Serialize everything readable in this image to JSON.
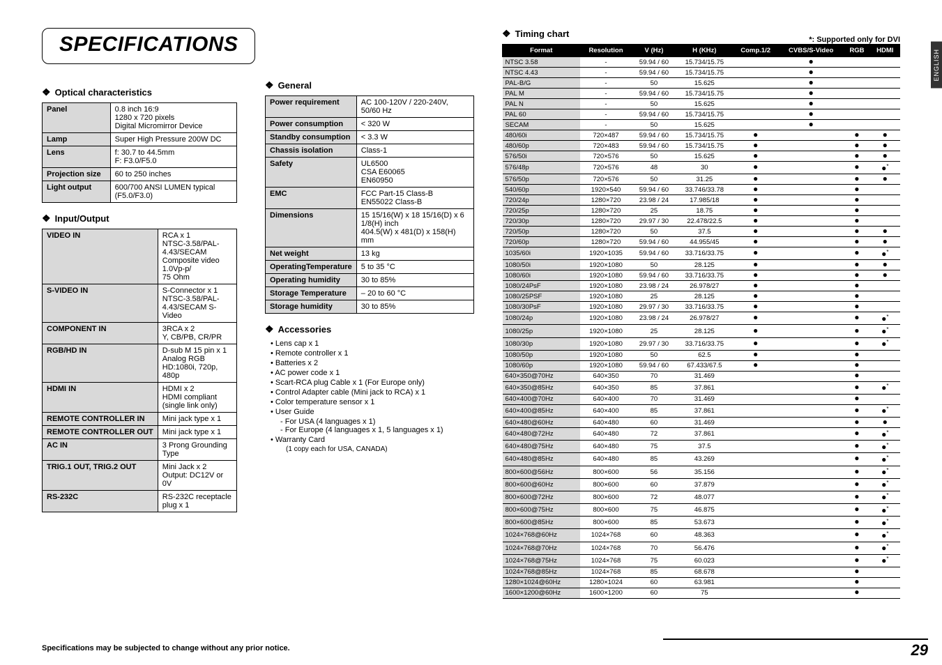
{
  "page": {
    "title": "SPECIFICATIONS",
    "footer_note": "Specifications may be subjected to change without any prior notice.",
    "page_number": "29",
    "lang_tab": "ENGLISH"
  },
  "optical": {
    "heading": "Optical characteristics",
    "rows": [
      [
        "Panel",
        "0.8 inch 16:9\n1280 x 720 pixels\nDigital Micromirror Device"
      ],
      [
        "Lamp",
        "Super High Pressure 200W DC"
      ],
      [
        "Lens",
        "f: 30.7 to 44.5mm\nF: F3.0/F5.0"
      ],
      [
        "Projection size",
        "60 to 250 inches"
      ],
      [
        "Light output",
        "600/700  ANSI LUMEN typical (F5.0/F3.0)"
      ]
    ]
  },
  "io": {
    "heading": "Input/Output",
    "rows": [
      [
        "VIDEO IN",
        "RCA x 1\nNTSC-3.58/PAL-4.43/SECAM Composite video 1.0Vp-p/\n75 Ohm"
      ],
      [
        "S-VIDEO IN",
        "S-Connector x 1\nNTSC-3.58/PAL-4.43/SECAM S-Video"
      ],
      [
        "COMPONENT IN",
        "3RCA x 2\nY, CB/PB, CR/PR"
      ],
      [
        "RGB/HD IN",
        "D-sub M 15 pin x 1\nAnalog RGB\nHD:1080i, 720p, 480p"
      ],
      [
        "HDMI IN",
        "HDMI x 2\nHDMI compliant\n(single link only)"
      ],
      [
        "REMOTE CONTROLLER IN",
        "Mini jack type x 1"
      ],
      [
        "REMOTE CONTROLLER OUT",
        "Mini jack type x 1"
      ],
      [
        "AC IN",
        "3 Prong Grounding Type"
      ],
      [
        "TRIG.1 OUT, TRIG.2 OUT",
        "Mini Jack x 2\nOutput: DC12V or 0V"
      ],
      [
        "RS-232C",
        "RS-232C receptacle plug x 1"
      ]
    ]
  },
  "general": {
    "heading": "General",
    "rows": [
      [
        "Power requirement",
        "AC 100-120V / 220-240V, 50/60 Hz"
      ],
      [
        "Power consumption",
        "< 320 W"
      ],
      [
        "Standby consumption",
        "< 3.3 W"
      ],
      [
        "Chassis isolation",
        "Class-1"
      ],
      [
        "Safety",
        "UL6500\nCSA E60065\nEN60950"
      ],
      [
        "EMC",
        "FCC Part-15 Class-B\nEN55022 Class-B"
      ],
      [
        "Dimensions",
        "15 15/16(W) x 18 15/16(D) x 6 1/8(H) inch\n404.5(W) x 481(D) x 158(H) mm"
      ],
      [
        "Net weight",
        "13 kg"
      ],
      [
        "OperatingTemperature",
        "5 to 35 °C"
      ],
      [
        "Operating humidity",
        "30 to 85%"
      ],
      [
        "Storage Temperature",
        "– 20 to 60 °C"
      ],
      [
        "Storage humidity",
        "30 to 85%"
      ]
    ]
  },
  "accessories": {
    "heading": "Accessories",
    "items": [
      "Lens cap x 1",
      "Remote controller x 1",
      "Batteries x 2",
      "AC power code x 1",
      "Scart-RCA plug Cable x 1 (For Europe only)",
      "Control Adapter cable (Mini jack to RCA) x 1",
      "Color temperature sensor x 1",
      "User Guide",
      "Warranty Card"
    ],
    "userguide_subs": [
      "For USA (4 languages x 1)",
      "For Europe (4 languages x 1, 5 languages x 1)"
    ],
    "warranty_sub": "(1 copy each for USA, CANADA)"
  },
  "timing": {
    "heading": "Timing chart",
    "support_note": "*: Supported only for DVI",
    "headers": [
      "Format",
      "Resolution",
      "V (Hz)",
      "H (KHz)",
      "Comp.1/2",
      "CVBS/S-Video",
      "RGB",
      "HDMI"
    ],
    "rows": [
      [
        "NTSC 3.58",
        "-",
        "59.94 / 60",
        "15.734/15.75",
        "",
        "●",
        "",
        ""
      ],
      [
        "NTSC 4.43",
        "-",
        "59.94 / 60",
        "15.734/15.75",
        "",
        "●",
        "",
        ""
      ],
      [
        "PAL-B/G",
        "-",
        "50",
        "15.625",
        "",
        "●",
        "",
        ""
      ],
      [
        "PAL M",
        "-",
        "59.94 / 60",
        "15.734/15.75",
        "",
        "●",
        "",
        ""
      ],
      [
        "PAL N",
        "-",
        "50",
        "15.625",
        "",
        "●",
        "",
        ""
      ],
      [
        "PAL 60",
        "-",
        "59.94 / 60",
        "15.734/15.75",
        "",
        "●",
        "",
        ""
      ],
      [
        "SECAM",
        "-",
        "50",
        "15.625",
        "",
        "●",
        "",
        ""
      ],
      [
        "480/60i",
        "720×487",
        "59.94 / 60",
        "15.734/15.75",
        "●",
        "",
        "●",
        "●"
      ],
      [
        "480/60p",
        "720×483",
        "59.94 / 60",
        "15.734/15.75",
        "●",
        "",
        "●",
        "●"
      ],
      [
        "576/50i",
        "720×576",
        "50",
        "15.625",
        "●",
        "",
        "●",
        "●"
      ],
      [
        "576/48p",
        "720×576",
        "48",
        "30",
        "●",
        "",
        "●",
        "●*"
      ],
      [
        "576/50p",
        "720×576",
        "50",
        "31.25",
        "●",
        "",
        "●",
        "●"
      ],
      [
        "540/60p",
        "1920×540",
        "59.94 / 60",
        "33.746/33.78",
        "●",
        "",
        "●",
        ""
      ],
      [
        "720/24p",
        "1280×720",
        "23.98 / 24",
        "17.985/18",
        "●",
        "",
        "●",
        ""
      ],
      [
        "720/25p",
        "1280×720",
        "25",
        "18.75",
        "●",
        "",
        "●",
        ""
      ],
      [
        "720/30p",
        "1280×720",
        "29.97 / 30",
        "22.478/22.5",
        "●",
        "",
        "●",
        ""
      ],
      [
        "720/50p",
        "1280×720",
        "50",
        "37.5",
        "●",
        "",
        "●",
        "●"
      ],
      [
        "720/60p",
        "1280×720",
        "59.94 / 60",
        "44.955/45",
        "●",
        "",
        "●",
        "●"
      ],
      [
        "1035/60i",
        "1920×1035",
        "59.94 / 60",
        "33.716/33.75",
        "●",
        "",
        "●",
        "●*"
      ],
      [
        "1080/50i",
        "1920×1080",
        "50",
        "28.125",
        "●",
        "",
        "●",
        "●"
      ],
      [
        "1080/60i",
        "1920×1080",
        "59.94 / 60",
        "33.716/33.75",
        "●",
        "",
        "●",
        "●"
      ],
      [
        "1080/24PsF",
        "1920×1080",
        "23.98 / 24",
        "26.978/27",
        "●",
        "",
        "●",
        ""
      ],
      [
        "1080/25PSF",
        "1920×1080",
        "25",
        "28.125",
        "●",
        "",
        "●",
        ""
      ],
      [
        "1080/30PsF",
        "1920×1080",
        "29.97 / 30",
        "33.716/33.75",
        "●",
        "",
        "●",
        ""
      ],
      [
        "1080/24p",
        "1920×1080",
        "23.98 / 24",
        "26.978/27",
        "●",
        "",
        "●",
        "●*"
      ],
      [
        "1080/25p",
        "1920×1080",
        "25",
        "28.125",
        "●",
        "",
        "●",
        "●*"
      ],
      [
        "1080/30p",
        "1920×1080",
        "29.97 / 30",
        "33.716/33.75",
        "●",
        "",
        "●",
        "●*"
      ],
      [
        "1080/50p",
        "1920×1080",
        "50",
        "62.5",
        "●",
        "",
        "●",
        ""
      ],
      [
        "1080/60p",
        "1920×1080",
        "59.94 / 60",
        "67.433/67.5",
        "●",
        "",
        "●",
        ""
      ],
      [
        "640×350@70Hz",
        "640×350",
        "70",
        "31.469",
        "",
        "",
        "●",
        ""
      ],
      [
        "640×350@85Hz",
        "640×350",
        "85",
        "37.861",
        "",
        "",
        "●",
        "●*"
      ],
      [
        "640×400@70Hz",
        "640×400",
        "70",
        "31.469",
        "",
        "",
        "●",
        ""
      ],
      [
        "640×400@85Hz",
        "640×400",
        "85",
        "37.861",
        "",
        "",
        "●",
        "●*"
      ],
      [
        "640×480@60Hz",
        "640×480",
        "60",
        "31.469",
        "",
        "",
        "●",
        "●"
      ],
      [
        "640×480@72Hz",
        "640×480",
        "72",
        "37.861",
        "",
        "",
        "●",
        "●*"
      ],
      [
        "640×480@75Hz",
        "640×480",
        "75",
        "37.5",
        "",
        "",
        "●",
        "●*"
      ],
      [
        "640×480@85Hz",
        "640×480",
        "85",
        "43.269",
        "",
        "",
        "●",
        "●*"
      ],
      [
        "800×600@56Hz",
        "800×600",
        "56",
        "35.156",
        "",
        "",
        "●",
        "●*"
      ],
      [
        "800×600@60Hz",
        "800×600",
        "60",
        "37.879",
        "",
        "",
        "●",
        "●*"
      ],
      [
        "800×600@72Hz",
        "800×600",
        "72",
        "48.077",
        "",
        "",
        "●",
        "●*"
      ],
      [
        "800×600@75Hz",
        "800×600",
        "75",
        "46.875",
        "",
        "",
        "●",
        "●*"
      ],
      [
        "800×600@85Hz",
        "800×600",
        "85",
        "53.673",
        "",
        "",
        "●",
        "●*"
      ],
      [
        "1024×768@60Hz",
        "1024×768",
        "60",
        "48.363",
        "",
        "",
        "●",
        "●*"
      ],
      [
        "1024×768@70Hz",
        "1024×768",
        "70",
        "56.476",
        "",
        "",
        "●",
        "●*"
      ],
      [
        "1024×768@75Hz",
        "1024×768",
        "75",
        "60.023",
        "",
        "",
        "●",
        "●*"
      ],
      [
        "1024×768@85Hz",
        "1024×768",
        "85",
        "68.678",
        "",
        "",
        "●",
        ""
      ],
      [
        "1280×1024@60Hz",
        "1280×1024",
        "60",
        "63.981",
        "",
        "",
        "●",
        ""
      ],
      [
        "1600×1200@60Hz",
        "1600×1200",
        "60",
        "75",
        "",
        "",
        "●",
        ""
      ]
    ]
  }
}
